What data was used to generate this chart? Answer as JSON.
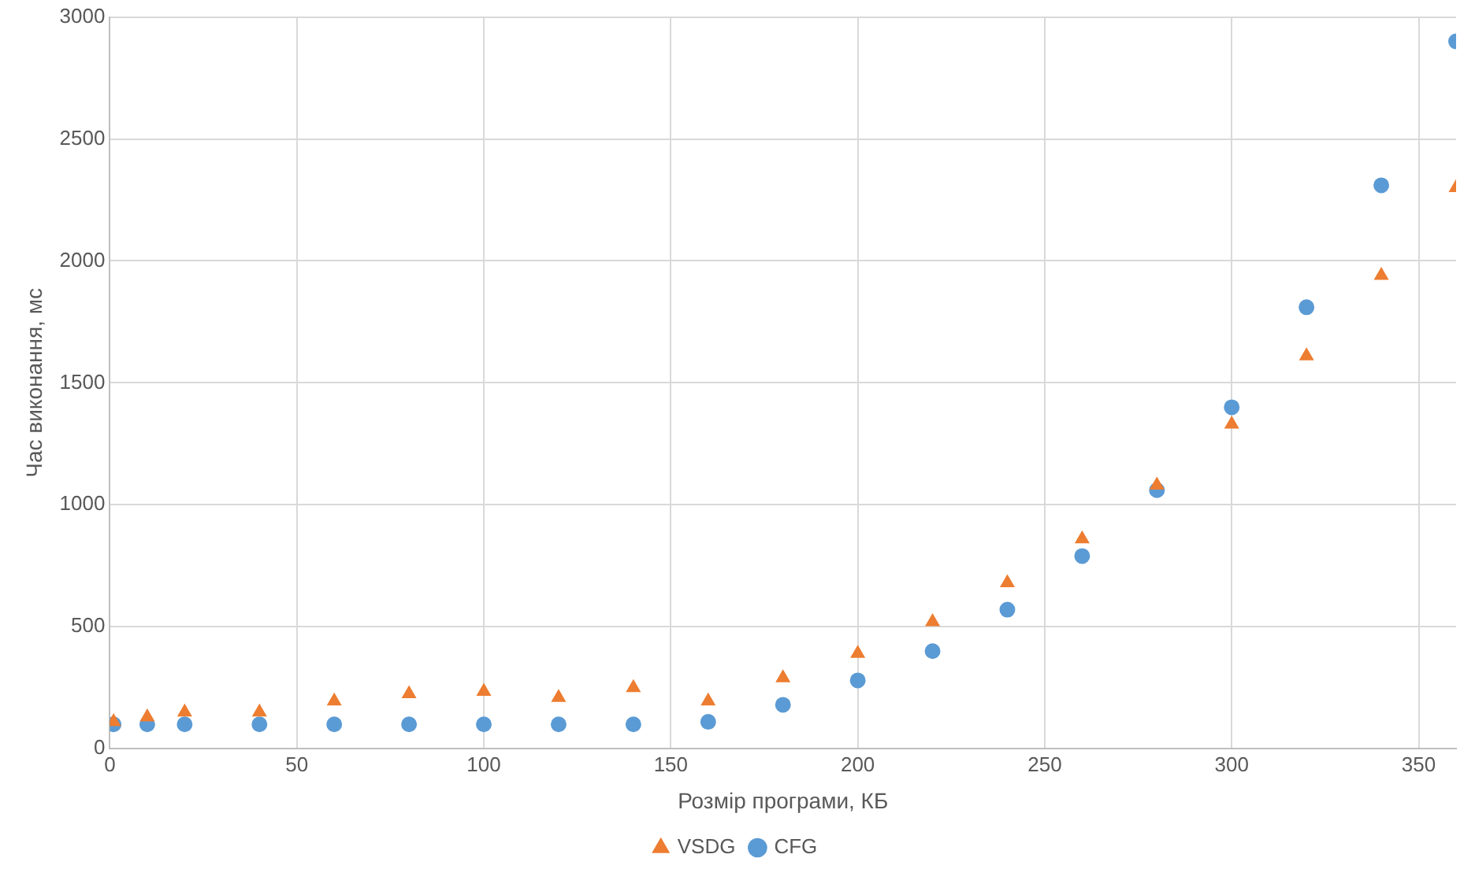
{
  "chart_data": {
    "type": "scatter",
    "xlabel": "Розмір програми, КБ",
    "ylabel": "Час виконання, мс",
    "x": [
      1,
      10,
      20,
      40,
      60,
      80,
      100,
      120,
      140,
      160,
      180,
      200,
      220,
      240,
      260,
      280,
      300,
      320,
      340,
      360
    ],
    "series": [
      {
        "name": "CFG",
        "color": "#5b9bd5",
        "marker": "circle",
        "values": [
          100,
          100,
          100,
          100,
          100,
          100,
          100,
          100,
          100,
          110,
          180,
          280,
          400,
          570,
          790,
          1060,
          1400,
          1810,
          2310,
          2900
        ]
      },
      {
        "name": "VSDG",
        "color": "#ed7d31",
        "marker": "triangle",
        "values": [
          110,
          130,
          150,
          150,
          195,
          225,
          235,
          210,
          250,
          195,
          290,
          390,
          520,
          680,
          860,
          1080,
          1330,
          1610,
          1940,
          2300
        ]
      }
    ],
    "xlim": [
      0,
      360
    ],
    "xticks": [
      0,
      50,
      100,
      150,
      200,
      250,
      300,
      350
    ],
    "ylim": [
      0,
      3000
    ],
    "yticks": [
      0,
      500,
      1000,
      1500,
      2000,
      2500,
      3000
    ],
    "grid": true,
    "legend": "bottom"
  }
}
